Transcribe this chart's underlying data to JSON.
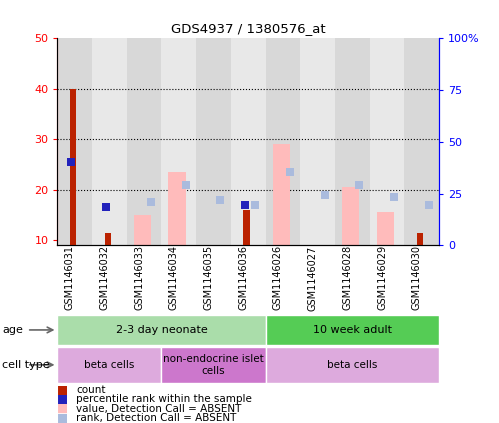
{
  "title": "GDS4937 / 1380576_at",
  "samples": [
    "GSM1146031",
    "GSM1146032",
    "GSM1146033",
    "GSM1146034",
    "GSM1146035",
    "GSM1146036",
    "GSM1146026",
    "GSM1146027",
    "GSM1146028",
    "GSM1146029",
    "GSM1146030"
  ],
  "count_values": [
    40,
    11.5,
    null,
    null,
    null,
    16,
    null,
    null,
    null,
    null,
    11.5
  ],
  "percentile_values": [
    25.5,
    16.5,
    null,
    null,
    null,
    17,
    null,
    null,
    null,
    null,
    null
  ],
  "absent_value_bars": [
    null,
    null,
    15,
    23.5,
    null,
    null,
    29,
    null,
    20.5,
    15.5,
    null
  ],
  "absent_rank_bars": [
    null,
    null,
    17.5,
    21,
    18,
    17,
    23.5,
    19,
    21,
    18.5,
    17
  ],
  "absent_rank_sq": [
    null,
    null,
    17.5,
    21,
    18,
    17,
    23.5,
    19,
    21,
    18.5,
    17
  ],
  "ylim_left": [
    9,
    50
  ],
  "ylim_right": [
    0,
    100
  ],
  "left_ticks": [
    10,
    20,
    30,
    40,
    50
  ],
  "right_ticks": [
    0,
    25,
    50,
    75,
    100
  ],
  "left_tick_labels": [
    "10",
    "20",
    "30",
    "40",
    "50"
  ],
  "right_tick_labels": [
    "0",
    "25",
    "50",
    "75",
    "100%"
  ],
  "age_groups": [
    {
      "label": "2-3 day neonate",
      "start": 0,
      "end": 6,
      "color": "#aaddaa"
    },
    {
      "label": "10 week adult",
      "start": 6,
      "end": 11,
      "color": "#55cc55"
    }
  ],
  "cell_type_groups": [
    {
      "label": "beta cells",
      "start": 0,
      "end": 3,
      "color": "#ddaadd"
    },
    {
      "label": "non-endocrine islet\ncells",
      "start": 3,
      "end": 6,
      "color": "#cc77cc"
    },
    {
      "label": "beta cells",
      "start": 6,
      "end": 11,
      "color": "#ddaadd"
    }
  ],
  "count_color": "#bb2200",
  "percentile_color": "#2222bb",
  "absent_value_color": "#ffbbbb",
  "absent_rank_color": "#aabbdd",
  "col_bg_even": "#d8d8d8",
  "col_bg_odd": "#e8e8e8"
}
